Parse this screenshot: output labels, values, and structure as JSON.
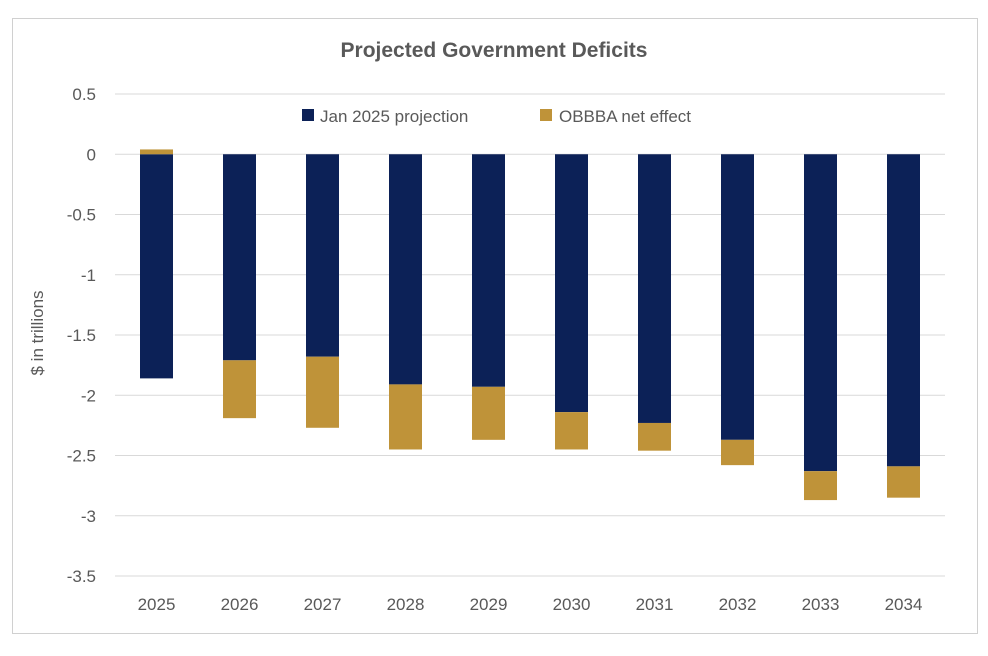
{
  "chart_data": {
    "type": "bar",
    "stacked": true,
    "title": "Projected Government Deficits",
    "xlabel": "",
    "ylabel": "$ in trillions",
    "ylim": [
      -3.5,
      0.5
    ],
    "yticks": [
      "0.5",
      "0",
      "-0.5",
      "-1",
      "-1.5",
      "-2",
      "-2.5",
      "-3",
      "-3.5"
    ],
    "grid": true,
    "legend_position": "top",
    "categories": [
      "2025",
      "2026",
      "2027",
      "2028",
      "2029",
      "2030",
      "2031",
      "2032",
      "2033",
      "2034"
    ],
    "series": [
      {
        "name": "Jan 2025 projection",
        "color": "#0c2157",
        "values": [
          -1.86,
          -1.71,
          -1.68,
          -1.91,
          -1.93,
          -2.14,
          -2.23,
          -2.37,
          -2.63,
          -2.59
        ]
      },
      {
        "name": "OBBBA net effect",
        "color": "#bf9339",
        "values": [
          0.04,
          -0.48,
          -0.59,
          -0.54,
          -0.44,
          -0.31,
          -0.23,
          -0.21,
          -0.24,
          -0.26
        ]
      }
    ]
  }
}
